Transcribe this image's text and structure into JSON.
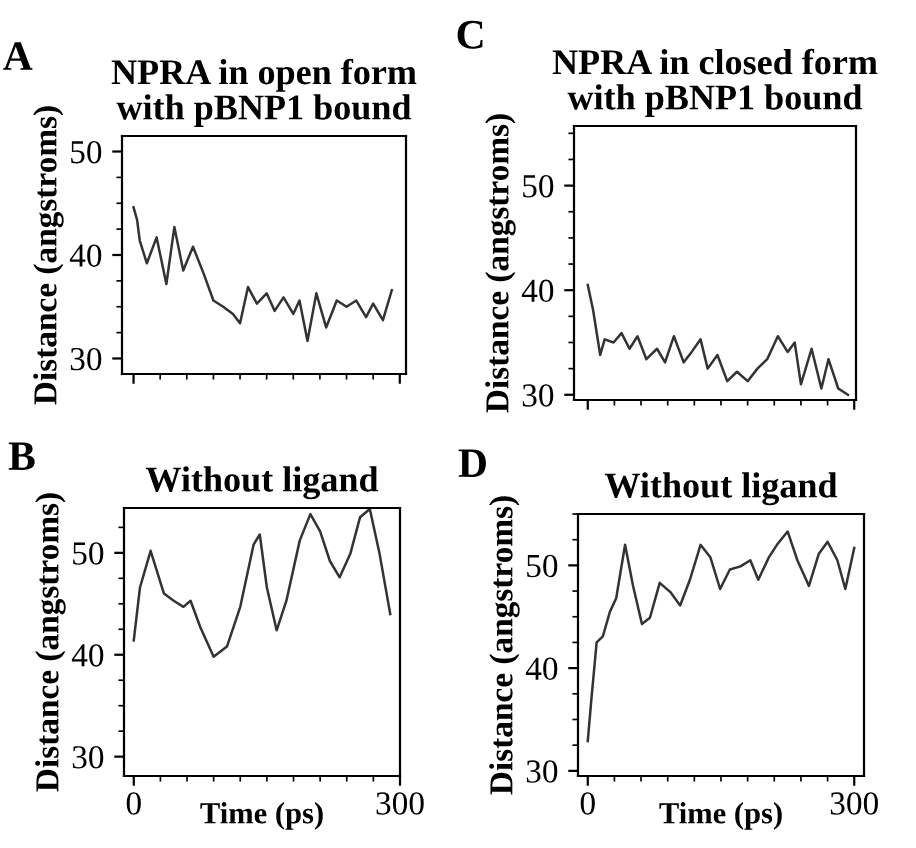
{
  "chart_data": [
    {
      "type": "line",
      "title": "NPRA in open form\nwith pBNP1 bound",
      "ylabel": "Distance (angstroms)",
      "annotations": [
        "A"
      ],
      "xlim": [
        -13,
        307
      ],
      "ylim": [
        28.5,
        51.5
      ],
      "xticks": [
        0,
        300
      ],
      "yticks": [
        30,
        40,
        50
      ],
      "tick_labels": "y",
      "marker": "none",
      "line_style": "solid",
      "grid": false,
      "legend": false,
      "series": [
        {
          "color": "#333333",
          "x": [
            0,
            4,
            7,
            15,
            26,
            37,
            46,
            56,
            67,
            79,
            90,
            101,
            112,
            120,
            129,
            139,
            150,
            159,
            169,
            180,
            187,
            196,
            206,
            217,
            229,
            240,
            251,
            262,
            270,
            281,
            291
          ],
          "values": [
            44.6,
            43.4,
            41.4,
            39.2,
            41.7,
            37.2,
            42.7,
            38.5,
            40.8,
            38.2,
            35.6,
            35,
            34.3,
            33.4,
            36.9,
            35.3,
            36.3,
            34.6,
            35.9,
            34.3,
            35.6,
            31.7,
            36.3,
            33,
            35.6,
            35,
            35.6,
            34,
            35.3,
            33.7,
            36.6
          ]
        }
      ]
    },
    {
      "type": "line",
      "title": "NPRA in closed form\nwith pBNP1 bound",
      "ylabel": "Distance (angstroms)",
      "annotations": [
        "C"
      ],
      "xlim": [
        -15.5,
        302
      ],
      "ylim": [
        29.5,
        55.7
      ],
      "xticks": [
        0,
        300
      ],
      "yticks": [
        30,
        40,
        50
      ],
      "tick_labels": "y",
      "marker": "none",
      "line_style": "solid",
      "grid": false,
      "legend": false,
      "series": [
        {
          "color": "#333333",
          "x": [
            0,
            6,
            14,
            19,
            29,
            38,
            47,
            56,
            66,
            78,
            87,
            97,
            108,
            117,
            127,
            135,
            146,
            157,
            168,
            180,
            191,
            202,
            214,
            225,
            233,
            240,
            252,
            263,
            271,
            282,
            293
          ],
          "values": [
            40.5,
            38.1,
            33.8,
            35.3,
            35,
            35.9,
            34.4,
            35.6,
            33.4,
            34.4,
            33.1,
            35.6,
            33.1,
            34.1,
            35.3,
            32.5,
            33.8,
            31.3,
            32.2,
            31.3,
            32.5,
            33.4,
            35.6,
            34.1,
            35,
            31,
            34.4,
            30.6,
            33.4,
            30.6,
            30
          ]
        }
      ]
    },
    {
      "type": "line",
      "title": "Without ligand",
      "xlabel": "Time (ps)",
      "ylabel": "Distance (angstroms)",
      "annotations": [
        "B"
      ],
      "xlim": [
        -11,
        300
      ],
      "ylim": [
        28.1,
        54.4
      ],
      "xticks": [
        0,
        300
      ],
      "yticks": [
        30,
        40,
        50
      ],
      "marker": "none",
      "line_style": "solid",
      "grid": false,
      "legend": false,
      "series": [
        {
          "color": "#333333",
          "x": [
            0,
            7,
            19,
            34,
            45,
            56,
            64,
            75,
            90,
            105,
            120,
            135,
            142,
            150,
            161,
            172,
            187,
            199,
            210,
            221,
            232,
            244,
            255,
            266,
            277,
            289
          ],
          "values": [
            41.4,
            46.6,
            50.2,
            46,
            45.3,
            44.7,
            45.3,
            42.7,
            39.8,
            40.8,
            44.7,
            50.8,
            51.8,
            46.6,
            42.4,
            45.3,
            51.2,
            53.8,
            52.1,
            49.2,
            47.6,
            49.9,
            53.5,
            54.3,
            49.9,
            44
          ]
        }
      ]
    },
    {
      "type": "line",
      "title": "Without ligand",
      "xlabel": "Time (ps)",
      "ylabel": "Distance (angstroms)",
      "annotations": [
        "D"
      ],
      "xlim": [
        -11,
        311
      ],
      "ylim": [
        29.5,
        55
      ],
      "xticks": [
        0,
        300
      ],
      "yticks": [
        30,
        40,
        50
      ],
      "marker": "none",
      "line_style": "solid",
      "grid": false,
      "legend": false,
      "series": [
        {
          "color": "#333333",
          "x": [
            0,
            4,
            10,
            17,
            25,
            32,
            42,
            51,
            61,
            70,
            81,
            93,
            104,
            115,
            127,
            138,
            149,
            160,
            172,
            183,
            192,
            204,
            213,
            225,
            236,
            249,
            260,
            270,
            281,
            290,
            300
          ],
          "values": [
            32.9,
            36.9,
            42.5,
            43.1,
            45.5,
            46.8,
            52,
            48,
            44.3,
            44.9,
            48.3,
            47.4,
            46.1,
            48.6,
            52,
            50.8,
            47.7,
            49.6,
            49.9,
            50.5,
            48.6,
            50.8,
            52,
            53.3,
            50.5,
            48,
            51.1,
            52.3,
            50.5,
            47.7,
            51.7
          ]
        }
      ]
    }
  ]
}
